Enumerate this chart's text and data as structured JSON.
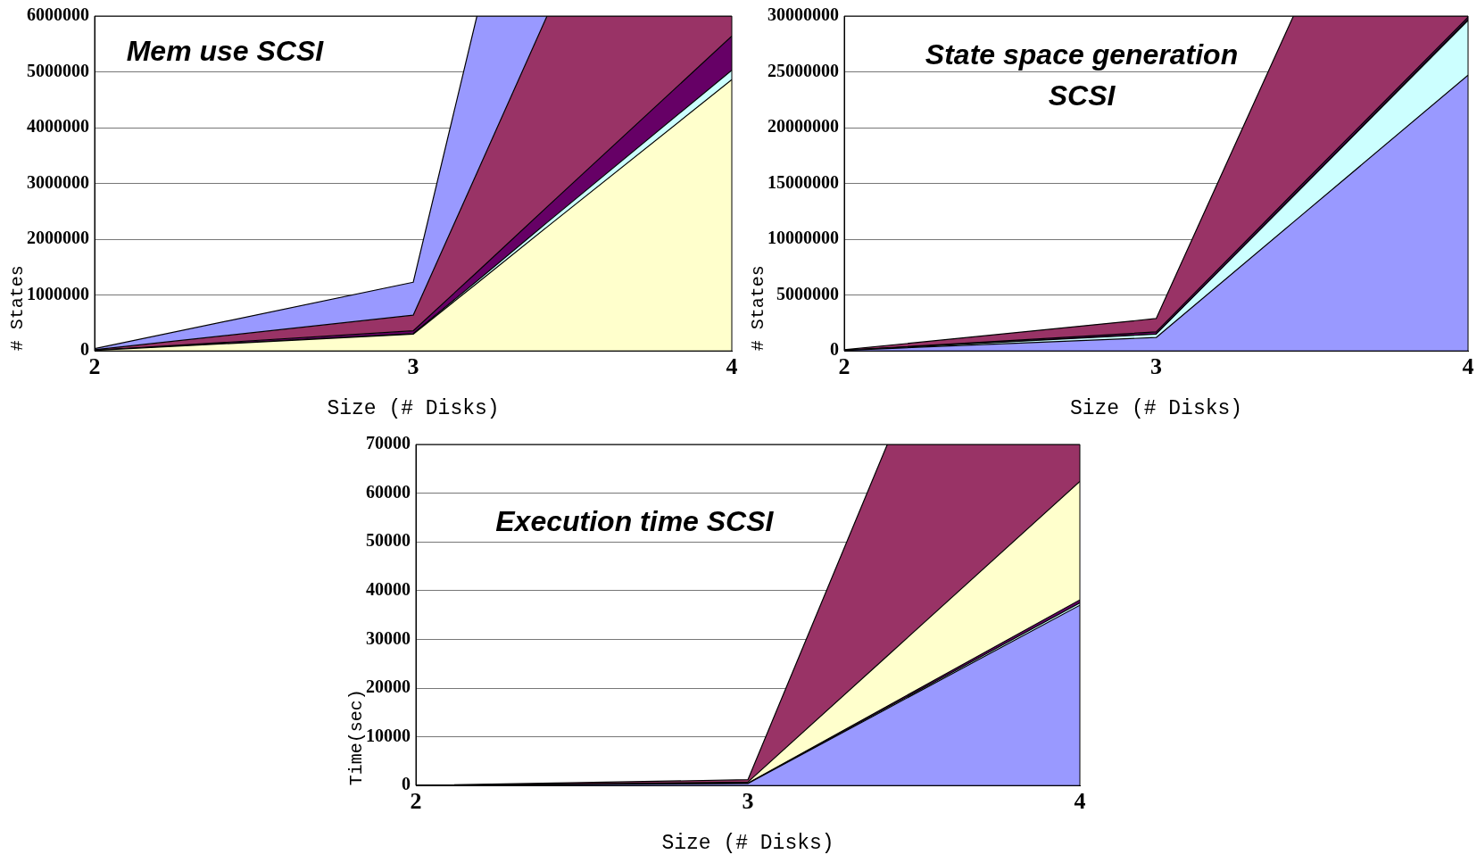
{
  "chart_data": [
    {
      "type": "area",
      "title": "Mem use SCSI",
      "xlabel": "Size (# Disks)",
      "ylabel": "# States",
      "x": [
        2,
        3,
        3.2,
        3.42,
        4
      ],
      "stacked": true,
      "grid": "y",
      "legend": false,
      "xlim": [
        2,
        4
      ],
      "xticks": [
        2,
        3,
        4
      ],
      "ylim": [
        0,
        6000000
      ],
      "yticks": [
        0,
        1000000,
        2000000,
        3000000,
        4000000,
        5000000,
        6000000
      ],
      "series": [
        {
          "color": "#ffffcc",
          "values": [
            10000,
            300000,
            1210000,
            2220000,
            4860000
          ]
        },
        {
          "color": "#ccffff",
          "values": [
            0,
            10000,
            40000,
            80000,
            170000
          ]
        },
        {
          "color": "#660066",
          "values": [
            0,
            50000,
            160000,
            280000,
            610000
          ]
        },
        {
          "color": "#993366",
          "values": [
            10000,
            280000,
            1780000,
            3420000,
            360000
          ]
        },
        {
          "color": "#9999ff",
          "values": [
            20000,
            590000,
            2810000,
            0,
            null
          ]
        }
      ]
    },
    {
      "type": "area",
      "title": "State space generation SCSI",
      "xlabel": "Size (# Disks)",
      "ylabel": "# States",
      "x": [
        2,
        3,
        3.44,
        4
      ],
      "stacked": true,
      "grid": "y",
      "legend": false,
      "xlim": [
        2,
        4
      ],
      "xticks": [
        2,
        3,
        4
      ],
      "ylim": [
        0,
        30000000
      ],
      "yticks": [
        0,
        5000000,
        10000000,
        15000000,
        20000000,
        25000000,
        30000000
      ],
      "series": [
        {
          "color": "#9999ff",
          "values": [
            50000,
            1200000,
            11540000,
            24700000
          ]
        },
        {
          "color": "#ccffff",
          "values": [
            0,
            300000,
            2320000,
            4900000
          ]
        },
        {
          "color": "#ffffcc",
          "values": [
            0,
            0,
            50000,
            100000
          ]
        },
        {
          "color": "#660066",
          "values": [
            0,
            200000,
            240000,
            200000
          ]
        },
        {
          "color": "#993366",
          "values": [
            50000,
            1200000,
            15850000,
            100000
          ]
        }
      ]
    },
    {
      "type": "area",
      "title": "Execution time SCSI",
      "xlabel": "Size (# Disks)",
      "ylabel": "Time(sec)",
      "x": [
        2,
        3,
        3.42,
        4
      ],
      "stacked": true,
      "grid": "y",
      "legend": false,
      "xlim": [
        2,
        4
      ],
      "xticks": [
        2,
        3,
        4
      ],
      "ylim": [
        0,
        70000
      ],
      "yticks": [
        0,
        10000,
        20000,
        30000,
        40000,
        50000,
        60000,
        70000
      ],
      "series": [
        {
          "color": "#9999ff",
          "values": [
            0,
            400,
            15800,
            37000
          ]
        },
        {
          "color": "#ccffff",
          "values": [
            0,
            0,
            200,
            500
          ]
        },
        {
          "color": "#660066",
          "values": [
            0,
            100,
            300,
            600
          ]
        },
        {
          "color": "#ffffcc",
          "values": [
            0,
            200,
            10300,
            24300
          ]
        },
        {
          "color": "#993366",
          "values": [
            0,
            500,
            43400,
            7600
          ]
        }
      ]
    }
  ]
}
